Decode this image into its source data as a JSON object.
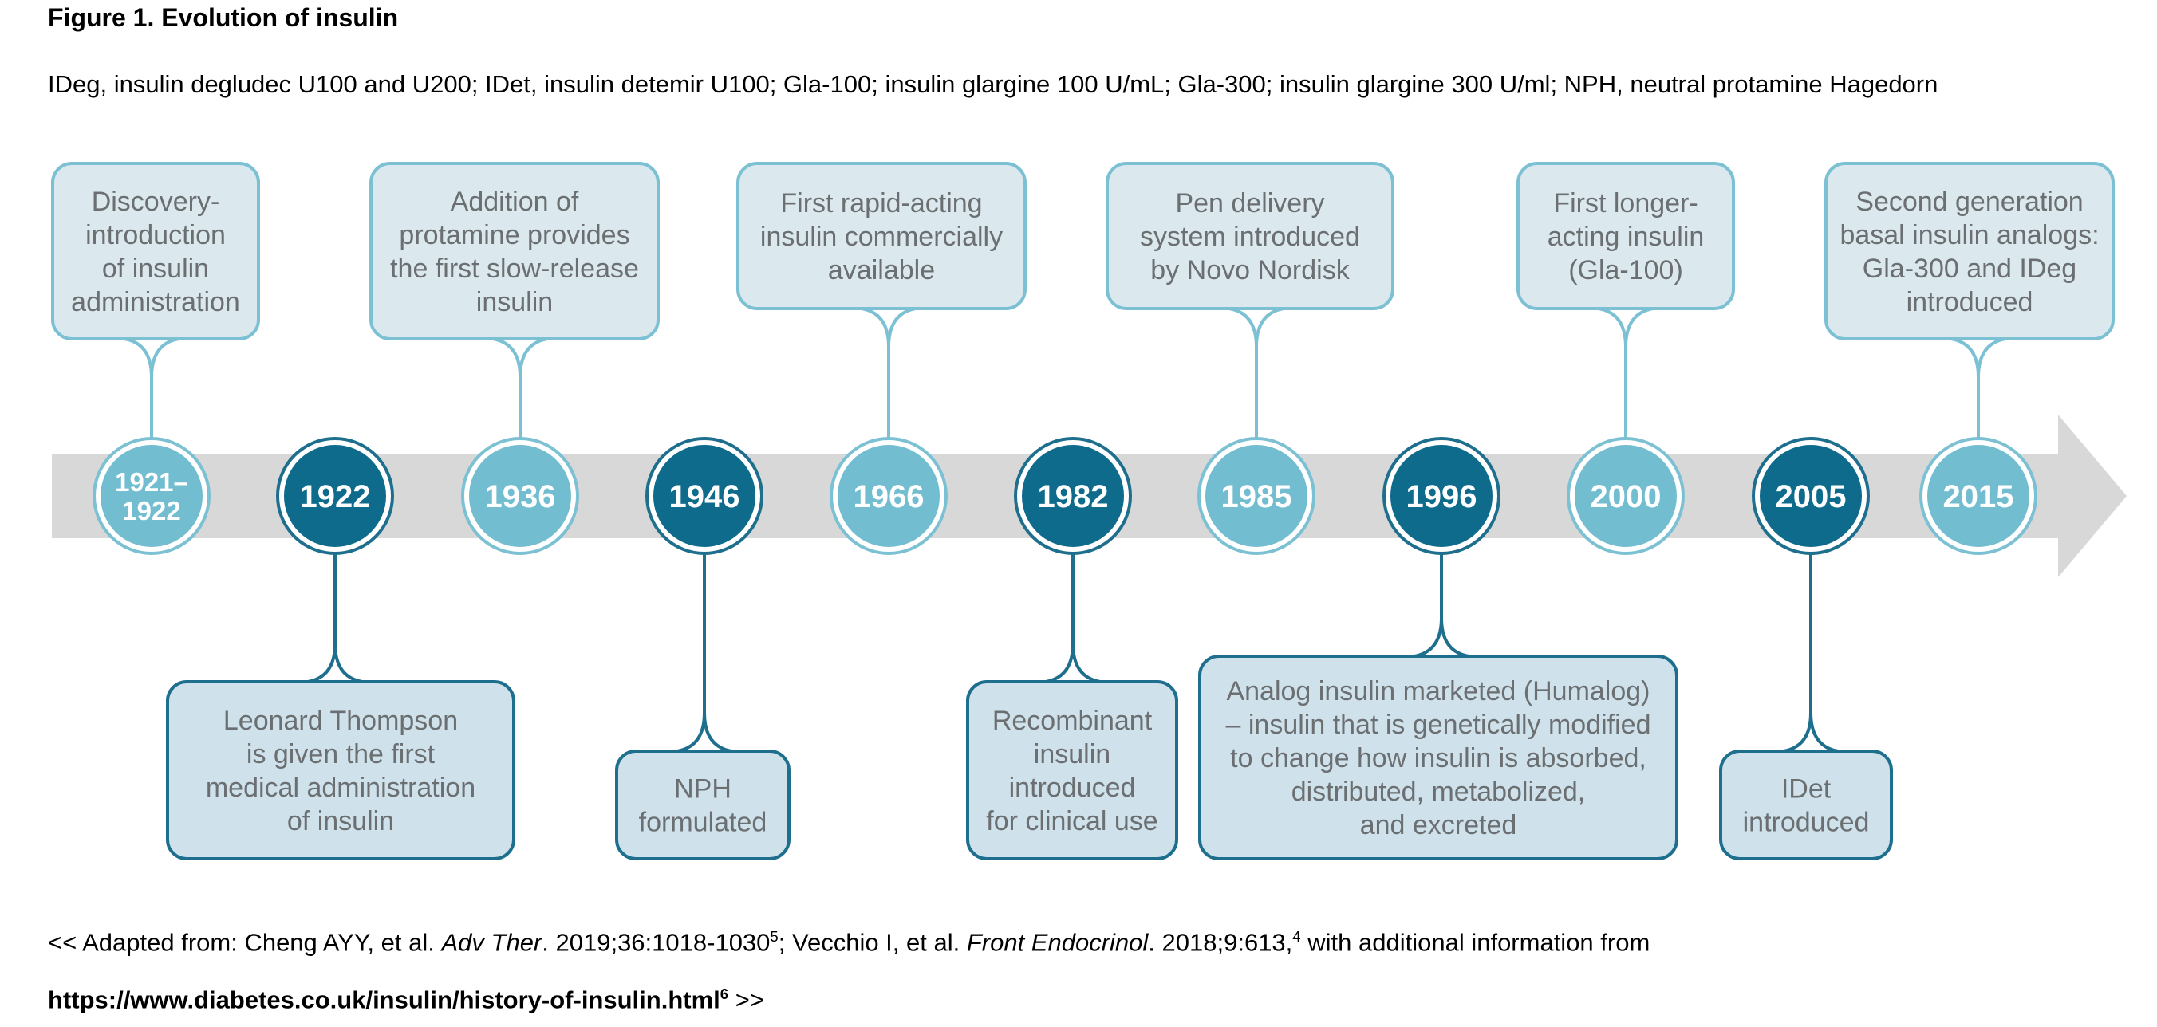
{
  "figure_title": "Figure 1. Evolution of insulin",
  "abbreviations": "IDeg, insulin degludec U100 and U200; IDet, insulin detemir U100; Gla-100; insulin glargine 100 U/mL; Gla-300; insulin glargine 300 U/ml; NPH, neutral protamine Hagedorn",
  "colors": {
    "light_fill": "#dbe9ef",
    "light_stroke": "#7cc1d3",
    "dark_fill": "#cfe1ea",
    "dark_stroke": "#1e6f8e",
    "light_circle": "#73bdd0",
    "dark_circle": "#0f6b8c",
    "arrow": "#d8d8d8"
  },
  "events": [
    {
      "year_lines": [
        "1921–",
        "1922"
      ],
      "style": "light",
      "side": "top",
      "text": [
        "Discovery-",
        "introduction",
        "of insulin",
        "administration"
      ]
    },
    {
      "year_lines": [
        "1922"
      ],
      "style": "dark",
      "side": "bottom",
      "text": [
        "Leonard Thompson",
        "is given the first",
        "medical administration",
        "of insulin"
      ]
    },
    {
      "year_lines": [
        "1936"
      ],
      "style": "light",
      "side": "top",
      "text": [
        "Addition of",
        "protamine provides",
        "the first slow-release",
        "insulin"
      ]
    },
    {
      "year_lines": [
        "1946"
      ],
      "style": "dark",
      "side": "bottom",
      "text": [
        "NPH",
        "formulated"
      ]
    },
    {
      "year_lines": [
        "1966"
      ],
      "style": "light",
      "side": "top",
      "text": [
        "First rapid-acting",
        "insulin commercially",
        "available"
      ]
    },
    {
      "year_lines": [
        "1982"
      ],
      "style": "dark",
      "side": "bottom",
      "text": [
        "Recombinant",
        "insulin",
        "introduced",
        "for clinical use"
      ]
    },
    {
      "year_lines": [
        "1985"
      ],
      "style": "light",
      "side": "top",
      "text": [
        "Pen delivery",
        "system introduced",
        "by Novo Nordisk"
      ]
    },
    {
      "year_lines": [
        "1996"
      ],
      "style": "dark",
      "side": "bottom",
      "text": [
        "Analog insulin marketed (Humalog)",
        "– insulin that is genetically modified",
        "to change how insulin is absorbed,",
        "distributed, metabolized,",
        "and excreted"
      ]
    },
    {
      "year_lines": [
        "2000"
      ],
      "style": "light",
      "side": "top",
      "text": [
        "First longer-",
        "acting insulin",
        "(Gla-100)"
      ]
    },
    {
      "year_lines": [
        "2005"
      ],
      "style": "dark",
      "side": "bottom",
      "text": [
        "IDet",
        "introduced"
      ]
    },
    {
      "year_lines": [
        "2015"
      ],
      "style": "light",
      "side": "top",
      "text": [
        "Second generation",
        "basal insulin analogs:",
        "Gla-300 and IDeg",
        "introduced"
      ]
    }
  ],
  "footer": {
    "prefix": "<< Adapted from: Cheng AYY, et al. ",
    "journal1": "Adv Ther",
    "cite1": ". 2019;36:1018-1030",
    "sup1": "5",
    "mid": "; Vecchio I, et al. ",
    "journal2": "Front Endocrinol",
    "cite2": ". 2018;9:613,",
    "sup2": "4",
    "suffix": " with additional information from",
    "url": "https://www.diabetes.co.uk/insulin/history-of-insulin.html",
    "sup3": "6",
    "end": " >>"
  }
}
